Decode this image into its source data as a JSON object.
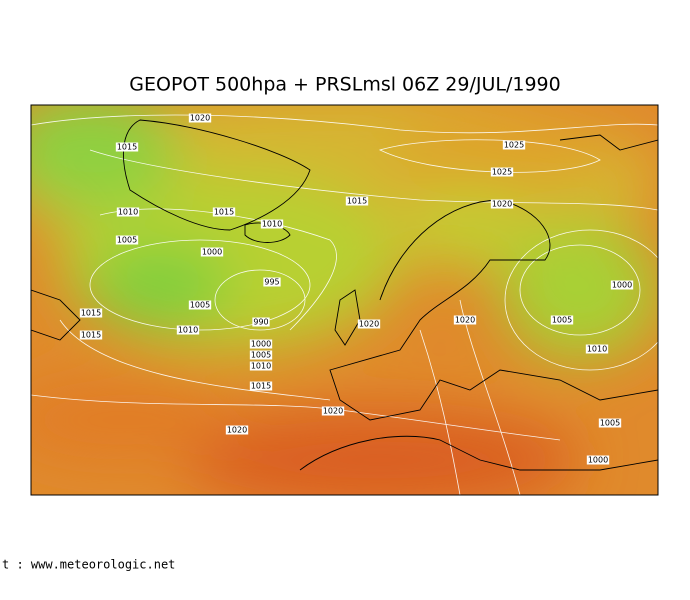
{
  "title": "GEOPOT 500hpa + PRSLmsl  06Z 29/JUL/1990",
  "isobar_labels": [
    "1020",
    "1015",
    "1025",
    "1025",
    "1015",
    "1020",
    "1015",
    "1010",
    "1010",
    "1005",
    "1000",
    "995",
    "1000",
    "1005",
    "1015",
    "1010",
    "990",
    "1020",
    "1020",
    "1005",
    "1015",
    "1000",
    "1005",
    "1010",
    "1010",
    "1015",
    "1020",
    "1020",
    "1005",
    "1000"
  ],
  "footer": "t : www.meteorologic.net"
}
